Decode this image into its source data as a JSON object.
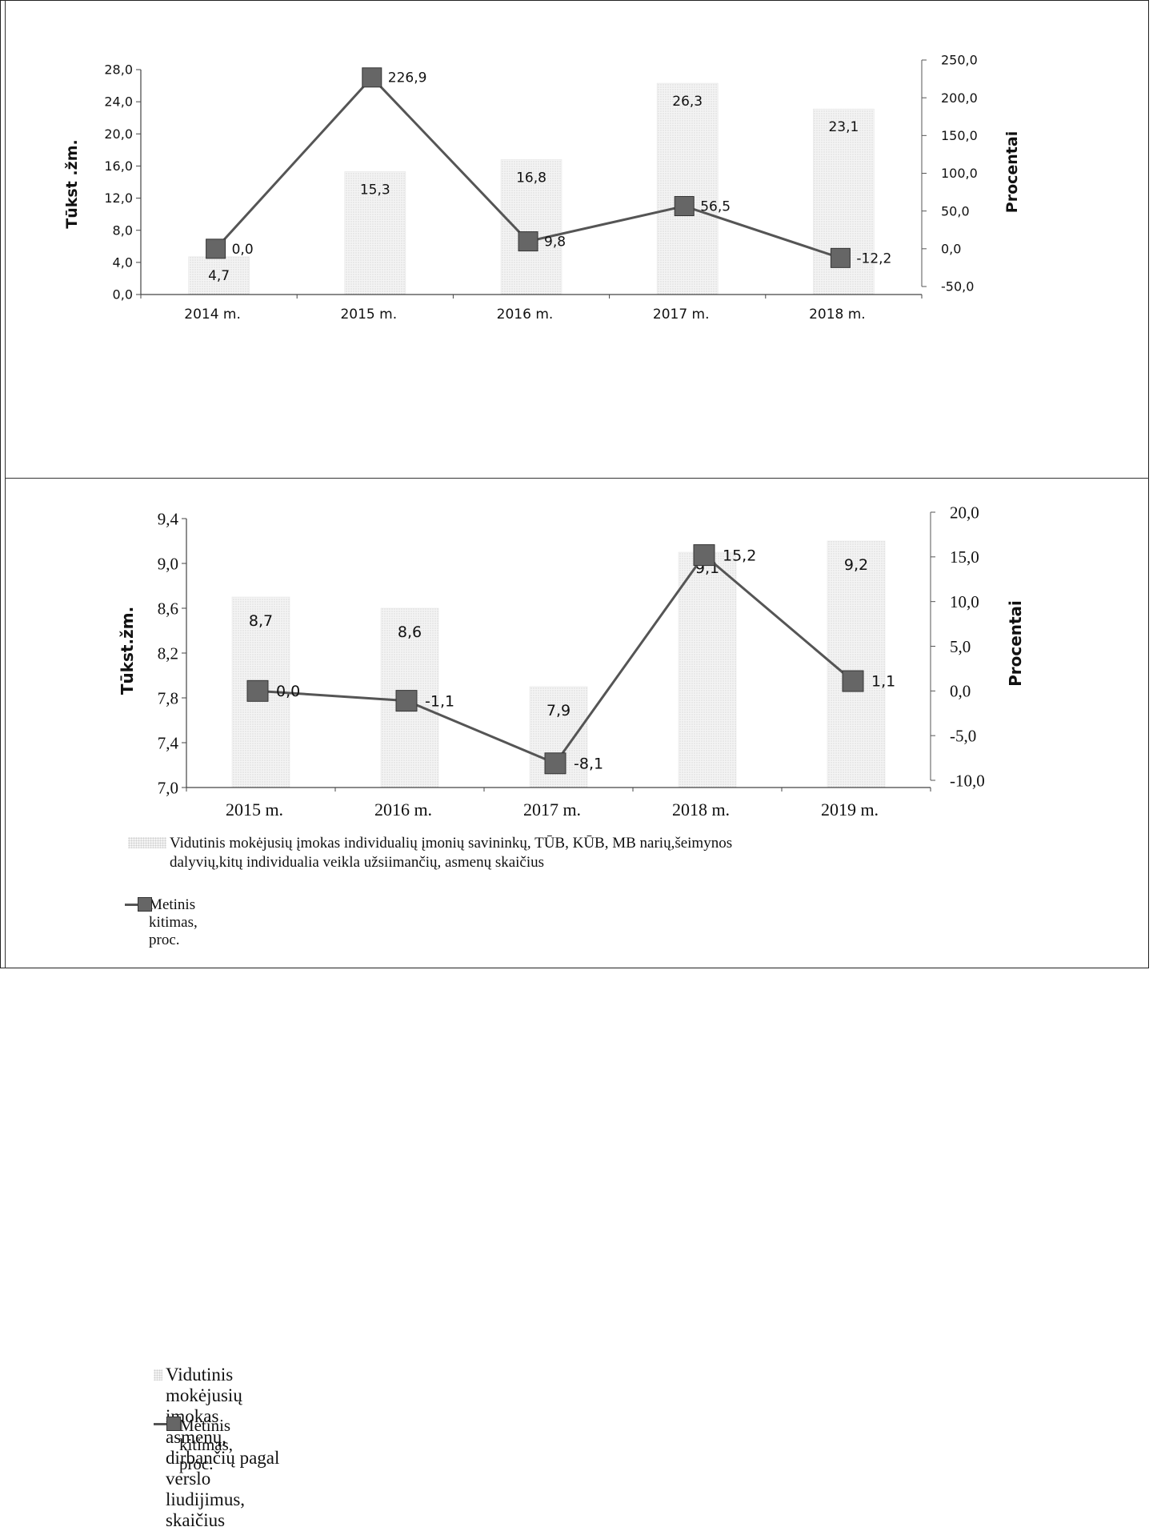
{
  "chart_data": [
    {
      "type": "bar+line",
      "categories": [
        "2014 m.",
        "2015 m.",
        "2016 m.",
        "2017 m.",
        "2018 m."
      ],
      "series": [
        {
          "name": "Vidutinis mokėjusių įmokas  individualių įmonių savininkų, TŪB, KŪB, MB narių,šeimynos dalyvių,kitų individualia veikla užsiimančių, asmenų  skaičius",
          "kind": "bar",
          "axis": "left",
          "values": [
            4.7,
            15.3,
            16.8,
            26.3,
            23.1
          ]
        },
        {
          "name": "Metinis kitimas, proc.",
          "kind": "line",
          "axis": "right",
          "values": [
            0.0,
            226.9,
            9.8,
            56.5,
            -12.2
          ]
        }
      ],
      "bar_labels": [
        "4,7",
        "15,3",
        "16,8",
        "26,3",
        "23,1"
      ],
      "line_labels": [
        "0,0",
        "226,9",
        "9,8",
        "56,5",
        "-12,2"
      ],
      "ylabel": "Tūkst .žm.",
      "ylabel_right": "Procentai",
      "ylim": [
        0,
        28
      ],
      "ylim_right": [
        -50,
        250
      ],
      "yticks": [
        "0,0",
        "4,0",
        "8,0",
        "12,0",
        "16,0",
        "20,0",
        "24,0",
        "28,0"
      ],
      "yticks_right": [
        "-50,0",
        "0,0",
        "50,0",
        "100,0",
        "150,0",
        "200,0",
        "250,0"
      ],
      "legend": {
        "bar_line1": "Vidutinis mokėjusių įmokas  individualių įmonių savininkų, TŪB, KŪB, MB narių,šeimynos",
        "bar_line2": "dalyvių,kitų individualia veikla užsiimančių, asmenų  skaičius",
        "line": "Metinis kitimas, proc."
      },
      "legend_position": "bottom",
      "grid": false
    },
    {
      "type": "bar+line",
      "categories": [
        "2015 m.",
        "2016 m.",
        "2017 m.",
        "2018 m.",
        "2019 m."
      ],
      "series": [
        {
          "name": "Vidutinis  mokėjusių įmokas  asmenų, dirbančių pagal verslo liudijimus, skaičius",
          "kind": "bar",
          "axis": "left",
          "values": [
            8.7,
            8.6,
            7.9,
            9.1,
            9.2
          ]
        },
        {
          "name": "Metinis kitimas, proc.",
          "kind": "line",
          "axis": "right",
          "values": [
            0.0,
            -1.1,
            -8.1,
            15.2,
            1.1
          ]
        }
      ],
      "bar_labels": [
        "8,7",
        "8,6",
        "7,9",
        "9,1",
        "9,2"
      ],
      "line_labels": [
        "0,0",
        "-1,1",
        "-8,1",
        "15,2",
        "1,1"
      ],
      "ylabel": "Tūkst.žm.",
      "ylabel_right": "Procentai",
      "ylim": [
        7.0,
        9.4
      ],
      "ylim_right": [
        -10,
        20
      ],
      "yticks": [
        "7,0",
        "7,4",
        "7,8",
        "8,2",
        "8,6",
        "9,0",
        "9,4"
      ],
      "yticks_right": [
        "-10,0",
        "-5,0",
        "0,0",
        "5,0",
        "10,0",
        "15,0",
        "20,0"
      ],
      "legend": {
        "bar_line1": "Vidutinis  mokėjusių įmokas  asmenų, dirbančių pagal verslo liudijimus, skaičius",
        "line": "Metinis kitimas, proc."
      },
      "legend_position": "bottom",
      "grid": false
    }
  ],
  "colors": {
    "bar_fill": "#efefef",
    "bar_dots": "#cfcfcf",
    "line": "#555555",
    "marker": "#666666",
    "marker_stroke": "#333333"
  }
}
